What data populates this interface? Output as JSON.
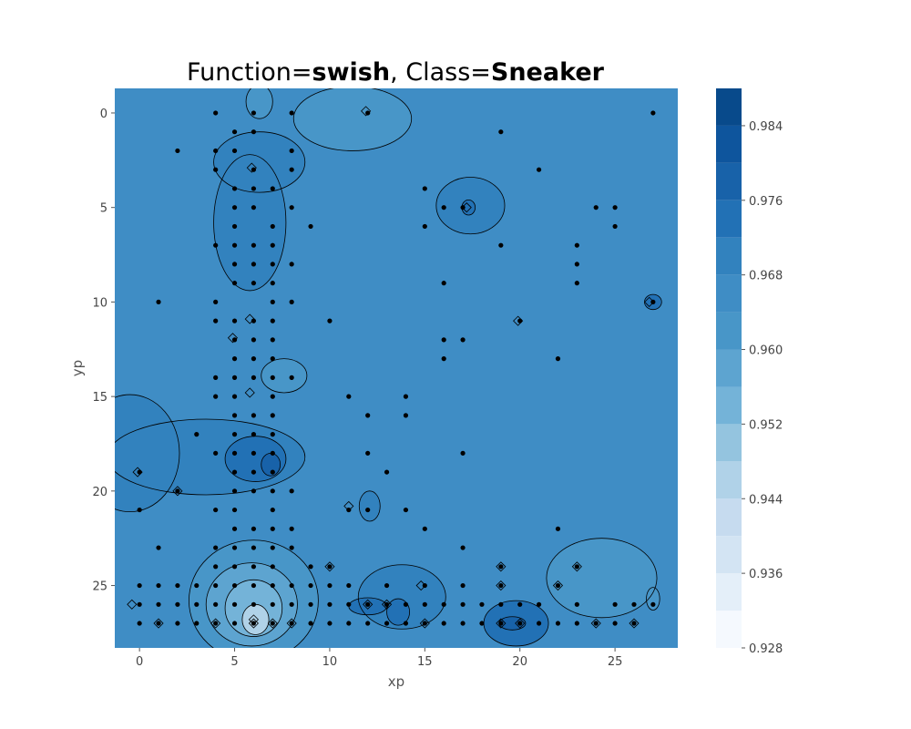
{
  "chart_data": {
    "type": "contour",
    "title_parts": [
      {
        "text": "Function=",
        "bold": false
      },
      {
        "text": "swish",
        "bold": true
      },
      {
        "text": ", Class=",
        "bold": false
      },
      {
        "text": "Sneaker",
        "bold": true
      }
    ],
    "xlabel": "xp",
    "ylabel": "yp",
    "xlim": [
      -1.3,
      28.3
    ],
    "ylim": [
      28.3,
      -1.3
    ],
    "y_inverted": true,
    "x_ticks": [
      0,
      5,
      10,
      15,
      20,
      25
    ],
    "y_ticks": [
      0,
      5,
      10,
      15,
      20,
      25
    ],
    "colorbar": {
      "colormap": "Blues",
      "range": [
        0.928,
        0.988
      ],
      "tick_values": [
        0.928,
        0.936,
        0.944,
        0.952,
        0.96,
        0.968,
        0.976,
        0.984
      ],
      "tick_labels": [
        "0.928",
        "0.936",
        "0.944",
        "0.952",
        "0.960",
        "0.968",
        "0.976",
        "0.984"
      ],
      "levels": [
        0.928,
        0.932,
        0.936,
        0.94,
        0.944,
        0.948,
        0.952,
        0.956,
        0.96,
        0.964,
        0.968,
        0.972,
        0.976,
        0.98,
        0.984,
        0.988
      ],
      "colors": [
        "#f5f9fe",
        "#e4eff9",
        "#d3e4f3",
        "#c6dbef",
        "#b0d2e8",
        "#94c4df",
        "#74b3d8",
        "#5da4d0",
        "#4896c8",
        "#3f8dc5",
        "#3282be",
        "#2271b5",
        "#1862a9",
        "#0e559d",
        "#084a8b",
        "#083b7a"
      ]
    },
    "background_value": 0.966,
    "regions": [
      {
        "shape": "ellipse",
        "cx": 5.8,
        "cy": 5.8,
        "rx": 1.9,
        "ry": 3.6,
        "value": 0.969
      },
      {
        "shape": "ellipse",
        "cx": 6.3,
        "cy": 2.6,
        "rx": 2.4,
        "ry": 1.6,
        "value": 0.969
      },
      {
        "shape": "ellipse",
        "cx": 11.2,
        "cy": 0.3,
        "rx": 3.1,
        "ry": 1.7,
        "value": 0.962
      },
      {
        "shape": "ellipse",
        "cx": 6.3,
        "cy": -0.6,
        "rx": 0.7,
        "ry": 0.9,
        "value": 0.962
      },
      {
        "shape": "ellipse",
        "cx": 17.4,
        "cy": 4.9,
        "rx": 1.8,
        "ry": 1.5,
        "value": 0.969
      },
      {
        "shape": "ellipse",
        "cx": 17.3,
        "cy": 5.0,
        "rx": 0.35,
        "ry": 0.4,
        "value": 0.974
      },
      {
        "shape": "ellipse",
        "cx": 7.6,
        "cy": 13.9,
        "rx": 1.2,
        "ry": 0.9,
        "value": 0.962
      },
      {
        "shape": "ellipse",
        "cx": 3.5,
        "cy": 18.2,
        "rx": 5.2,
        "ry": 2.0,
        "value": 0.969
      },
      {
        "shape": "ellipse",
        "cx": -0.5,
        "cy": 18.0,
        "rx": 2.6,
        "ry": 3.1,
        "value": 0.969
      },
      {
        "shape": "ellipse",
        "cx": 6.1,
        "cy": 18.3,
        "rx": 1.6,
        "ry": 1.2,
        "value": 0.973
      },
      {
        "shape": "ellipse",
        "cx": 6.9,
        "cy": 18.6,
        "rx": 0.5,
        "ry": 0.6,
        "value": 0.977
      },
      {
        "shape": "ellipse",
        "cx": 12.1,
        "cy": 20.8,
        "rx": 0.55,
        "ry": 0.8,
        "value": 0.969
      },
      {
        "shape": "ellipse",
        "cx": 6.0,
        "cy": 25.8,
        "rx": 3.4,
        "ry": 3.2,
        "value": 0.962
      },
      {
        "shape": "ellipse",
        "cx": 5.9,
        "cy": 26.0,
        "rx": 2.4,
        "ry": 2.2,
        "value": 0.957
      },
      {
        "shape": "ellipse",
        "cx": 6.0,
        "cy": 26.2,
        "rx": 1.5,
        "ry": 1.5,
        "value": 0.952
      },
      {
        "shape": "ellipse",
        "cx": 6.1,
        "cy": 26.8,
        "rx": 0.7,
        "ry": 0.8,
        "value": 0.946
      },
      {
        "shape": "ellipse",
        "cx": 13.8,
        "cy": 25.6,
        "rx": 2.3,
        "ry": 1.7,
        "value": 0.969
      },
      {
        "shape": "ellipse",
        "cx": 12.0,
        "cy": 26.1,
        "rx": 1.0,
        "ry": 0.45,
        "value": 0.973
      },
      {
        "shape": "ellipse",
        "cx": 13.6,
        "cy": 26.4,
        "rx": 0.6,
        "ry": 0.7,
        "value": 0.973
      },
      {
        "shape": "ellipse",
        "cx": 19.8,
        "cy": 27.0,
        "rx": 1.7,
        "ry": 1.2,
        "value": 0.973
      },
      {
        "shape": "ellipse",
        "cx": 19.6,
        "cy": 27.0,
        "rx": 0.7,
        "ry": 0.35,
        "value": 0.977
      },
      {
        "shape": "ellipse",
        "cx": 24.3,
        "cy": 24.6,
        "rx": 2.9,
        "ry": 2.1,
        "value": 0.962
      },
      {
        "shape": "ellipse",
        "cx": 27.0,
        "cy": 25.7,
        "rx": 0.35,
        "ry": 0.6,
        "value": 0.962
      },
      {
        "shape": "ellipse",
        "cx": 27.0,
        "cy": 10.0,
        "rx": 0.45,
        "ry": 0.4,
        "value": 0.973
      }
    ],
    "markers": [
      [
        -0.1,
        19
      ],
      [
        2,
        20
      ],
      [
        5.9,
        2.9
      ],
      [
        5.8,
        10.9
      ],
      [
        4.9,
        11.9
      ],
      [
        5.8,
        14.8
      ],
      [
        11.9,
        -0.1
      ],
      [
        17.2,
        5
      ],
      [
        19.9,
        11
      ],
      [
        26.8,
        10
      ],
      [
        11,
        20.8
      ],
      [
        10,
        24
      ],
      [
        14.8,
        25
      ],
      [
        19,
        24
      ],
      [
        19,
        25
      ],
      [
        23,
        24
      ],
      [
        22,
        25
      ],
      [
        -0.4,
        26
      ],
      [
        1,
        27
      ],
      [
        4,
        27
      ],
      [
        12,
        26
      ],
      [
        13,
        26
      ],
      [
        15,
        27
      ],
      [
        8,
        27
      ],
      [
        26,
        27
      ],
      [
        24,
        27
      ],
      [
        6,
        27
      ],
      [
        6,
        26.8
      ],
      [
        7,
        27
      ],
      [
        20,
        27
      ],
      [
        19,
        27
      ]
    ],
    "points": [
      [
        4,
        0
      ],
      [
        6,
        0
      ],
      [
        8,
        0
      ],
      [
        12,
        0
      ],
      [
        27,
        0
      ],
      [
        5,
        1
      ],
      [
        6,
        1
      ],
      [
        19,
        1
      ],
      [
        2,
        2
      ],
      [
        4,
        2
      ],
      [
        5,
        2
      ],
      [
        8,
        2
      ],
      [
        4,
        3
      ],
      [
        6,
        3
      ],
      [
        8,
        3
      ],
      [
        21,
        3
      ],
      [
        5,
        4
      ],
      [
        6,
        4
      ],
      [
        7,
        4
      ],
      [
        15,
        4
      ],
      [
        5,
        5
      ],
      [
        6,
        5
      ],
      [
        8,
        5
      ],
      [
        16,
        5
      ],
      [
        17,
        5
      ],
      [
        24,
        5
      ],
      [
        25,
        5
      ],
      [
        5,
        6
      ],
      [
        7,
        6
      ],
      [
        9,
        6
      ],
      [
        15,
        6
      ],
      [
        25,
        6
      ],
      [
        4,
        7
      ],
      [
        5,
        7
      ],
      [
        6,
        7
      ],
      [
        7,
        7
      ],
      [
        19,
        7
      ],
      [
        23,
        7
      ],
      [
        5,
        8
      ],
      [
        6,
        8
      ],
      [
        7,
        8
      ],
      [
        8,
        8
      ],
      [
        23,
        8
      ],
      [
        5,
        9
      ],
      [
        6,
        9
      ],
      [
        7,
        9
      ],
      [
        16,
        9
      ],
      [
        23,
        9
      ],
      [
        1,
        10
      ],
      [
        4,
        10
      ],
      [
        7,
        10
      ],
      [
        8,
        10
      ],
      [
        27,
        10
      ],
      [
        4,
        11
      ],
      [
        5,
        11
      ],
      [
        6,
        11
      ],
      [
        7,
        11
      ],
      [
        10,
        11
      ],
      [
        20,
        11
      ],
      [
        5,
        12
      ],
      [
        6,
        12
      ],
      [
        7,
        12
      ],
      [
        16,
        12
      ],
      [
        17,
        12
      ],
      [
        5,
        13
      ],
      [
        6,
        13
      ],
      [
        7,
        13
      ],
      [
        16,
        13
      ],
      [
        22,
        13
      ],
      [
        4,
        14
      ],
      [
        5,
        14
      ],
      [
        6,
        14
      ],
      [
        7,
        14
      ],
      [
        8,
        14
      ],
      [
        4,
        15
      ],
      [
        5,
        15
      ],
      [
        7,
        15
      ],
      [
        11,
        15
      ],
      [
        14,
        15
      ],
      [
        5,
        16
      ],
      [
        6,
        16
      ],
      [
        7,
        16
      ],
      [
        12,
        16
      ],
      [
        14,
        16
      ],
      [
        3,
        17
      ],
      [
        5,
        17
      ],
      [
        6,
        17
      ],
      [
        7,
        17
      ],
      [
        4,
        18
      ],
      [
        5,
        18
      ],
      [
        6,
        18
      ],
      [
        7,
        18
      ],
      [
        12,
        18
      ],
      [
        17,
        18
      ],
      [
        0,
        19
      ],
      [
        5,
        19
      ],
      [
        6,
        19
      ],
      [
        7,
        19
      ],
      [
        13,
        19
      ],
      [
        2,
        20
      ],
      [
        5,
        20
      ],
      [
        6,
        20
      ],
      [
        7,
        20
      ],
      [
        8,
        20
      ],
      [
        0,
        21
      ],
      [
        4,
        21
      ],
      [
        5,
        21
      ],
      [
        7,
        21
      ],
      [
        11,
        21
      ],
      [
        12,
        21
      ],
      [
        14,
        21
      ],
      [
        5,
        22
      ],
      [
        6,
        22
      ],
      [
        7,
        22
      ],
      [
        8,
        22
      ],
      [
        15,
        22
      ],
      [
        22,
        22
      ],
      [
        1,
        23
      ],
      [
        4,
        23
      ],
      [
        5,
        23
      ],
      [
        6,
        23
      ],
      [
        7,
        23
      ],
      [
        8,
        23
      ],
      [
        17,
        23
      ],
      [
        4,
        24
      ],
      [
        5,
        24
      ],
      [
        6,
        24
      ],
      [
        7,
        24
      ],
      [
        9,
        24
      ],
      [
        10,
        24
      ],
      [
        19,
        24
      ],
      [
        23,
        24
      ],
      [
        0,
        25
      ],
      [
        1,
        25
      ],
      [
        2,
        25
      ],
      [
        3,
        25
      ],
      [
        4,
        25
      ],
      [
        5,
        25
      ],
      [
        6,
        25
      ],
      [
        7,
        25
      ],
      [
        8,
        25
      ],
      [
        9,
        25
      ],
      [
        10,
        25
      ],
      [
        11,
        25
      ],
      [
        13,
        25
      ],
      [
        15,
        25
      ],
      [
        17,
        25
      ],
      [
        19,
        25
      ],
      [
        22,
        25
      ],
      [
        0,
        26
      ],
      [
        1,
        26
      ],
      [
        2,
        26
      ],
      [
        3,
        26
      ],
      [
        4,
        26
      ],
      [
        5,
        26
      ],
      [
        6,
        26
      ],
      [
        7,
        26
      ],
      [
        8,
        26
      ],
      [
        9,
        26
      ],
      [
        10,
        26
      ],
      [
        11,
        26
      ],
      [
        12,
        26
      ],
      [
        13,
        26
      ],
      [
        14,
        26
      ],
      [
        15,
        26
      ],
      [
        16,
        26
      ],
      [
        17,
        26
      ],
      [
        18,
        26
      ],
      [
        19,
        26
      ],
      [
        20,
        26
      ],
      [
        21,
        26
      ],
      [
        23,
        26
      ],
      [
        25,
        26
      ],
      [
        26,
        26
      ],
      [
        27,
        26
      ],
      [
        0,
        27
      ],
      [
        1,
        27
      ],
      [
        2,
        27
      ],
      [
        3,
        27
      ],
      [
        4,
        27
      ],
      [
        5,
        27
      ],
      [
        6,
        27
      ],
      [
        7,
        27
      ],
      [
        8,
        27
      ],
      [
        9,
        27
      ],
      [
        10,
        27
      ],
      [
        11,
        27
      ],
      [
        12,
        27
      ],
      [
        13,
        27
      ],
      [
        14,
        27
      ],
      [
        15,
        27
      ],
      [
        16,
        27
      ],
      [
        17,
        27
      ],
      [
        18,
        27
      ],
      [
        19,
        27
      ],
      [
        20,
        27
      ],
      [
        21,
        27
      ],
      [
        22,
        27
      ],
      [
        23,
        27
      ],
      [
        24,
        27
      ],
      [
        25,
        27
      ],
      [
        26,
        27
      ]
    ]
  }
}
